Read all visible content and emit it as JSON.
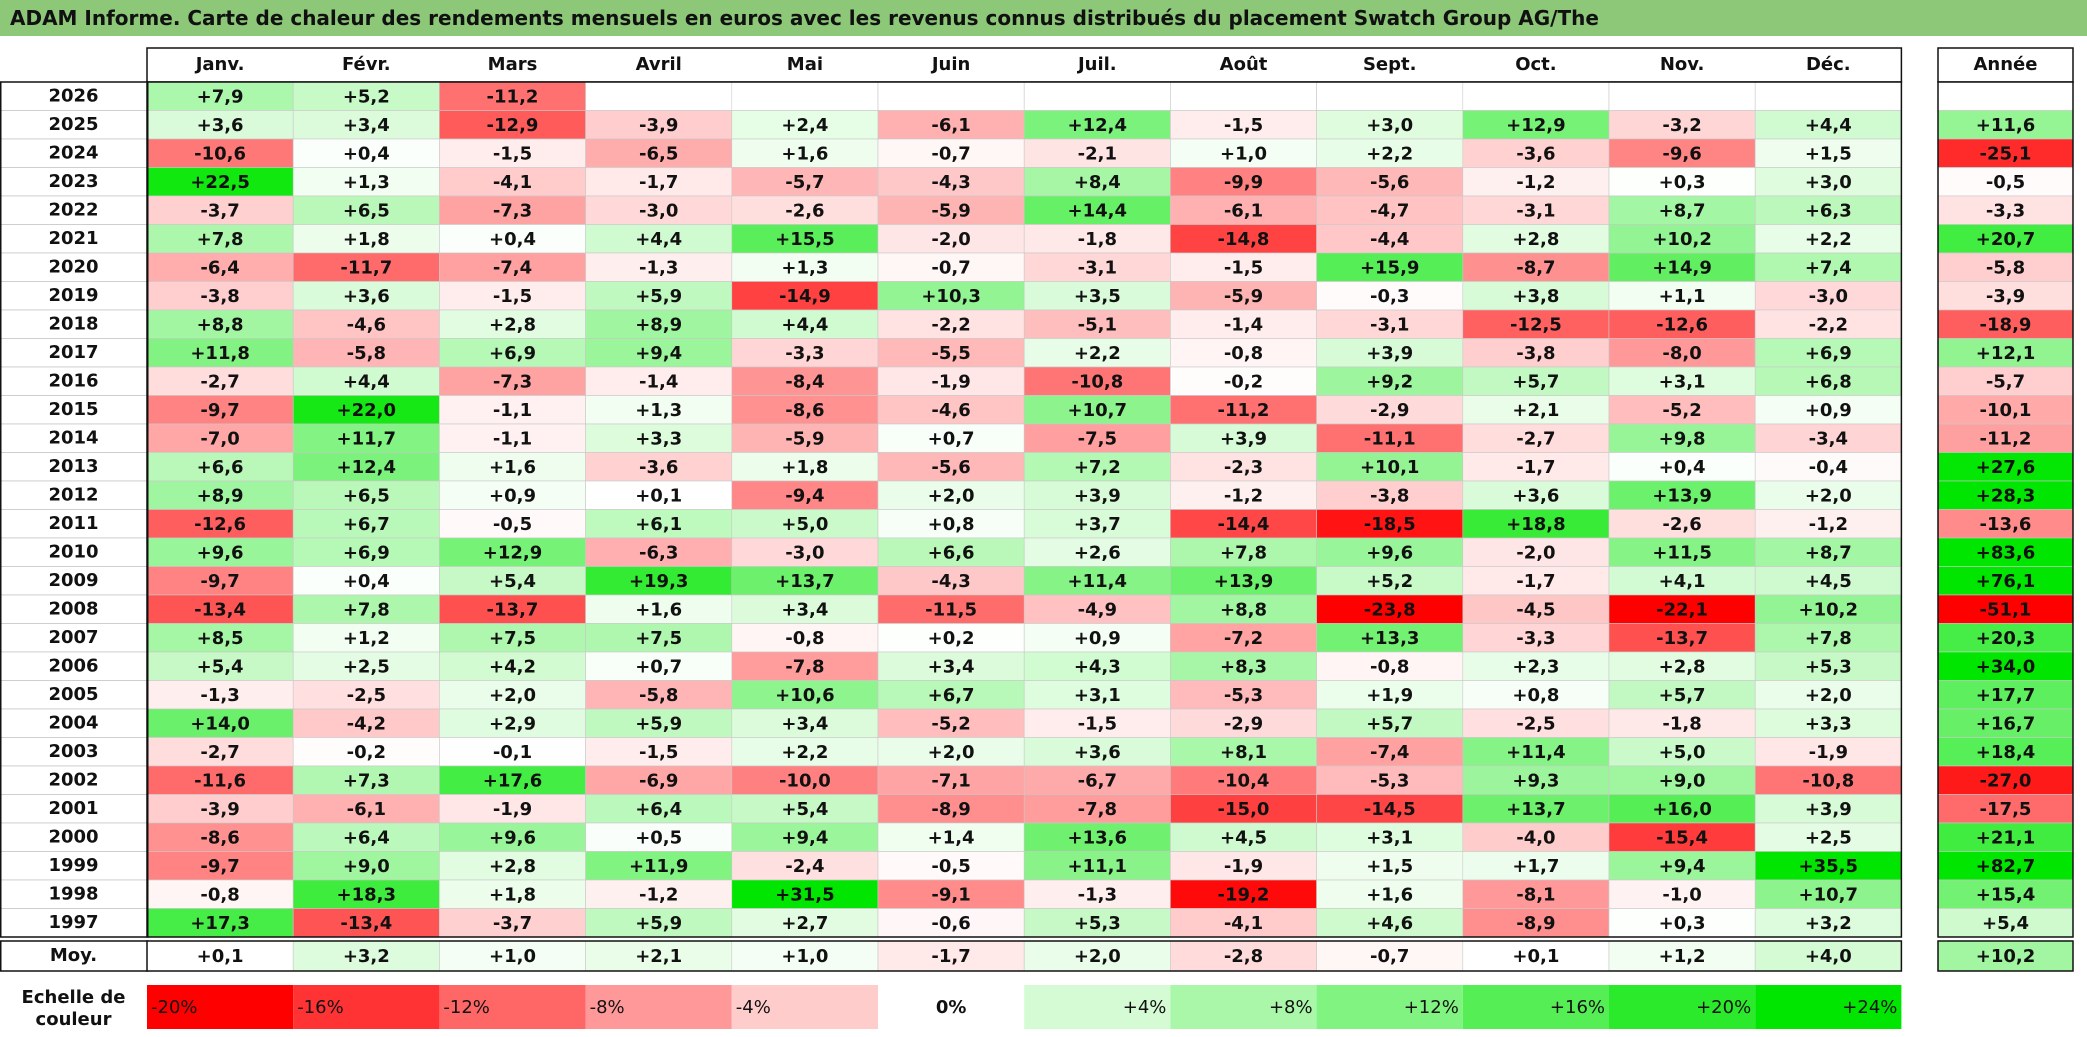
{
  "title": "ADAM Informe. Carte de chaleur des rendements mensuels en euros avec les revenus connus distribués du placement Swatch Group AG/The",
  "chart_data": {
    "type": "heatmap",
    "months": [
      "Janv.",
      "Févr.",
      "Mars",
      "Avril",
      "Mai",
      "Juin",
      "Juil.",
      "Août",
      "Sept.",
      "Oct.",
      "Nov.",
      "Déc."
    ],
    "year_header": "Année",
    "rows": [
      {
        "year": "2026",
        "values": [
          "+7,9",
          "+5,2",
          "-11,2",
          "",
          "",
          "",
          "",
          "",
          "",
          "",
          "",
          ""
        ],
        "annual": ""
      },
      {
        "year": "2025",
        "values": [
          "+3,6",
          "+3,4",
          "-12,9",
          "-3,9",
          "+2,4",
          "-6,1",
          "+12,4",
          "-1,5",
          "+3,0",
          "+12,9",
          "-3,2",
          "+4,4"
        ],
        "annual": "+11,6"
      },
      {
        "year": "2024",
        "values": [
          "-10,6",
          "+0,4",
          "-1,5",
          "-6,5",
          "+1,6",
          "-0,7",
          "-2,1",
          "+1,0",
          "+2,2",
          "-3,6",
          "-9,6",
          "+1,5"
        ],
        "annual": "-25,1"
      },
      {
        "year": "2023",
        "values": [
          "+22,5",
          "+1,3",
          "-4,1",
          "-1,7",
          "-5,7",
          "-4,3",
          "+8,4",
          "-9,9",
          "-5,6",
          "-1,2",
          "+0,3",
          "+3,0"
        ],
        "annual": "-0,5"
      },
      {
        "year": "2022",
        "values": [
          "-3,7",
          "+6,5",
          "-7,3",
          "-3,0",
          "-2,6",
          "-5,9",
          "+14,4",
          "-6,1",
          "-4,7",
          "-3,1",
          "+8,7",
          "+6,3"
        ],
        "annual": "-3,3"
      },
      {
        "year": "2021",
        "values": [
          "+7,8",
          "+1,8",
          "+0,4",
          "+4,4",
          "+15,5",
          "-2,0",
          "-1,8",
          "-14,8",
          "-4,4",
          "+2,8",
          "+10,2",
          "+2,2"
        ],
        "annual": "+20,7"
      },
      {
        "year": "2020",
        "values": [
          "-6,4",
          "-11,7",
          "-7,4",
          "-1,3",
          "+1,3",
          "-0,7",
          "-3,1",
          "-1,5",
          "+15,9",
          "-8,7",
          "+14,9",
          "+7,4"
        ],
        "annual": "-5,8"
      },
      {
        "year": "2019",
        "values": [
          "-3,8",
          "+3,6",
          "-1,5",
          "+5,9",
          "-14,9",
          "+10,3",
          "+3,5",
          "-5,9",
          "-0,3",
          "+3,8",
          "+1,1",
          "-3,0"
        ],
        "annual": "-3,9"
      },
      {
        "year": "2018",
        "values": [
          "+8,8",
          "-4,6",
          "+2,8",
          "+8,9",
          "+4,4",
          "-2,2",
          "-5,1",
          "-1,4",
          "-3,1",
          "-12,5",
          "-12,6",
          "-2,2"
        ],
        "annual": "-18,9"
      },
      {
        "year": "2017",
        "values": [
          "+11,8",
          "-5,8",
          "+6,9",
          "+9,4",
          "-3,3",
          "-5,5",
          "+2,2",
          "-0,8",
          "+3,9",
          "-3,8",
          "-8,0",
          "+6,9"
        ],
        "annual": "+12,1"
      },
      {
        "year": "2016",
        "values": [
          "-2,7",
          "+4,4",
          "-7,3",
          "-1,4",
          "-8,4",
          "-1,9",
          "-10,8",
          "-0,2",
          "+9,2",
          "+5,7",
          "+3,1",
          "+6,8"
        ],
        "annual": "-5,7"
      },
      {
        "year": "2015",
        "values": [
          "-9,7",
          "+22,0",
          "-1,1",
          "+1,3",
          "-8,6",
          "-4,6",
          "+10,7",
          "-11,2",
          "-2,9",
          "+2,1",
          "-5,2",
          "+0,9"
        ],
        "annual": "-10,1"
      },
      {
        "year": "2014",
        "values": [
          "-7,0",
          "+11,7",
          "-1,1",
          "+3,3",
          "-5,9",
          "+0,7",
          "-7,5",
          "+3,9",
          "-11,1",
          "-2,7",
          "+9,8",
          "-3,4"
        ],
        "annual": "-11,2"
      },
      {
        "year": "2013",
        "values": [
          "+6,6",
          "+12,4",
          "+1,6",
          "-3,6",
          "+1,8",
          "-5,6",
          "+7,2",
          "-2,3",
          "+10,1",
          "-1,7",
          "+0,4",
          "-0,4"
        ],
        "annual": "+27,6"
      },
      {
        "year": "2012",
        "values": [
          "+8,9",
          "+6,5",
          "+0,9",
          "+0,1",
          "-9,4",
          "+2,0",
          "+3,9",
          "-1,2",
          "-3,8",
          "+3,6",
          "+13,9",
          "+2,0"
        ],
        "annual": "+28,3"
      },
      {
        "year": "2011",
        "values": [
          "-12,6",
          "+6,7",
          "-0,5",
          "+6,1",
          "+5,0",
          "+0,8",
          "+3,7",
          "-14,4",
          "-18,5",
          "+18,8",
          "-2,6",
          "-1,2"
        ],
        "annual": "-13,6"
      },
      {
        "year": "2010",
        "values": [
          "+9,6",
          "+6,9",
          "+12,9",
          "-6,3",
          "-3,0",
          "+6,6",
          "+2,6",
          "+7,8",
          "+9,6",
          "-2,0",
          "+11,5",
          "+8,7"
        ],
        "annual": "+83,6"
      },
      {
        "year": "2009",
        "values": [
          "-9,7",
          "+0,4",
          "+5,4",
          "+19,3",
          "+13,7",
          "-4,3",
          "+11,4",
          "+13,9",
          "+5,2",
          "-1,7",
          "+4,1",
          "+4,5"
        ],
        "annual": "+76,1"
      },
      {
        "year": "2008",
        "values": [
          "-13,4",
          "+7,8",
          "-13,7",
          "+1,6",
          "+3,4",
          "-11,5",
          "-4,9",
          "+8,8",
          "-23,8",
          "-4,5",
          "-22,1",
          "+10,2"
        ],
        "annual": "-51,1"
      },
      {
        "year": "2007",
        "values": [
          "+8,5",
          "+1,2",
          "+7,5",
          "+7,5",
          "-0,8",
          "+0,2",
          "+0,9",
          "-7,2",
          "+13,3",
          "-3,3",
          "-13,7",
          "+7,8"
        ],
        "annual": "+20,3"
      },
      {
        "year": "2006",
        "values": [
          "+5,4",
          "+2,5",
          "+4,2",
          "+0,7",
          "-7,8",
          "+3,4",
          "+4,3",
          "+8,3",
          "-0,8",
          "+2,3",
          "+2,8",
          "+5,3"
        ],
        "annual": "+34,0"
      },
      {
        "year": "2005",
        "values": [
          "-1,3",
          "-2,5",
          "+2,0",
          "-5,8",
          "+10,6",
          "+6,7",
          "+3,1",
          "-5,3",
          "+1,9",
          "+0,8",
          "+5,7",
          "+2,0"
        ],
        "annual": "+17,7"
      },
      {
        "year": "2004",
        "values": [
          "+14,0",
          "-4,2",
          "+2,9",
          "+5,9",
          "+3,4",
          "-5,2",
          "-1,5",
          "-2,9",
          "+5,7",
          "-2,5",
          "-1,8",
          "+3,3"
        ],
        "annual": "+16,7"
      },
      {
        "year": "2003",
        "values": [
          "-2,7",
          "-0,2",
          "-0,1",
          "-1,5",
          "+2,2",
          "+2,0",
          "+3,6",
          "+8,1",
          "-7,4",
          "+11,4",
          "+5,0",
          "-1,9"
        ],
        "annual": "+18,4"
      },
      {
        "year": "2002",
        "values": [
          "-11,6",
          "+7,3",
          "+17,6",
          "-6,9",
          "-10,0",
          "-7,1",
          "-6,7",
          "-10,4",
          "-5,3",
          "+9,3",
          "+9,0",
          "-10,8"
        ],
        "annual": "-27,0"
      },
      {
        "year": "2001",
        "values": [
          "-3,9",
          "-6,1",
          "-1,9",
          "+6,4",
          "+5,4",
          "-8,9",
          "-7,8",
          "-15,0",
          "-14,5",
          "+13,7",
          "+16,0",
          "+3,9"
        ],
        "annual": "-17,5"
      },
      {
        "year": "2000",
        "values": [
          "-8,6",
          "+6,4",
          "+9,6",
          "+0,5",
          "+9,4",
          "+1,4",
          "+13,6",
          "+4,5",
          "+3,1",
          "-4,0",
          "-15,4",
          "+2,5"
        ],
        "annual": "+21,1"
      },
      {
        "year": "1999",
        "values": [
          "-9,7",
          "+9,0",
          "+2,8",
          "+11,9",
          "-2,4",
          "-0,5",
          "+11,1",
          "-1,9",
          "+1,5",
          "+1,7",
          "+9,4",
          "+35,5"
        ],
        "annual": "+82,7"
      },
      {
        "year": "1998",
        "values": [
          "-0,8",
          "+18,3",
          "+1,8",
          "-1,2",
          "+31,5",
          "-9,1",
          "-1,3",
          "-19,2",
          "+1,6",
          "-8,1",
          "-1,0",
          "+10,7"
        ],
        "annual": "+15,4"
      },
      {
        "year": "1997",
        "values": [
          "+17,3",
          "-13,4",
          "-3,7",
          "+5,9",
          "+2,7",
          "-0,6",
          "+5,3",
          "-4,1",
          "+4,6",
          "-8,9",
          "+0,3",
          "+3,2"
        ],
        "annual": "+5,4"
      }
    ],
    "average": {
      "label": "Moy.",
      "values": [
        "+0,1",
        "+3,2",
        "+1,0",
        "+2,1",
        "+1,0",
        "-1,7",
        "+2,0",
        "-2,8",
        "-0,7",
        "+0,1",
        "+1,2",
        "+4,0"
      ],
      "annual": "+10,2"
    },
    "scale": {
      "label_line1": "Echelle de",
      "label_line2": "couleur",
      "labels": [
        "-20%",
        "-16%",
        "-12%",
        "-8%",
        "-4%",
        "0%",
        "+4%",
        "+8%",
        "+12%",
        "+16%",
        "+20%",
        "+24%"
      ],
      "values": [
        -20,
        -16,
        -12,
        -8,
        -4,
        0,
        4,
        8,
        12,
        16,
        20,
        24
      ]
    },
    "colors": {
      "negative_max": "#ff0000",
      "positive_max": "#00e600",
      "neutral": "#ffffff",
      "title_bg": "#8cc878"
    }
  }
}
